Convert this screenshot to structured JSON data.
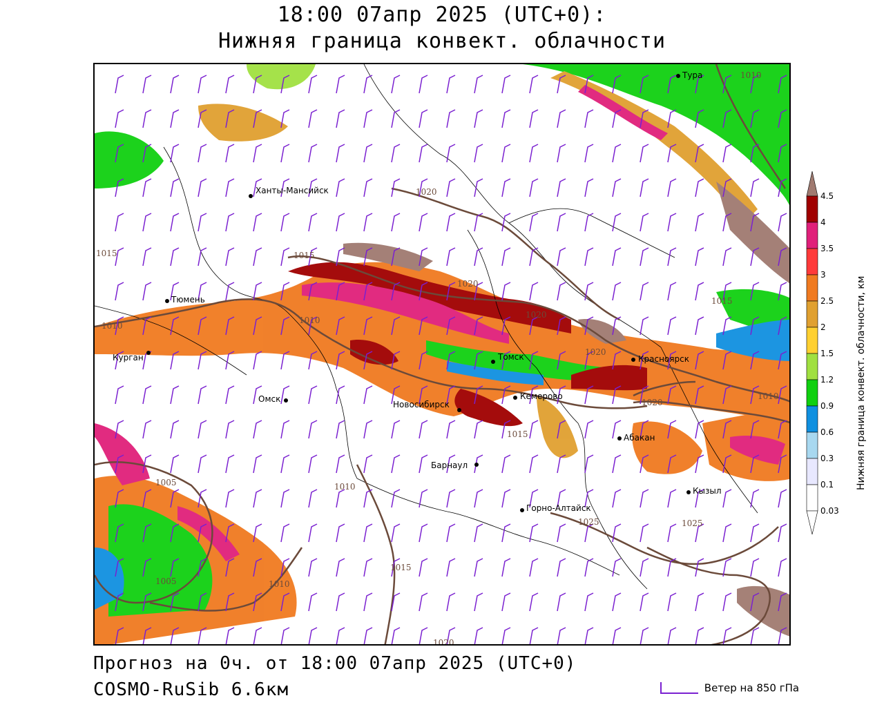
{
  "header": {
    "title_line1": "18:00 07апр 2025 (UTC+0):",
    "title_line2": "Нижняя граница конвект. облачности"
  },
  "footer": {
    "forecast": "Прогноз на 0ч. от 18:00 07апр 2025 (UTC+0)",
    "model": "COSMO-RuSib 6.6км",
    "wind_legend": "Ветер на 850 гПа"
  },
  "colorbar": {
    "title": "Нижняя граница конвект. облачности, км",
    "levels": [
      "4.5",
      "4",
      "3.5",
      "3",
      "2.5",
      "2",
      "1.5",
      "1.2",
      "0.9",
      "0.6",
      "0.3",
      "0.1",
      "0.03"
    ],
    "colors": [
      "#a07a70",
      "#a00000",
      "#e0207a",
      "#ff3a3a",
      "#f07a20",
      "#e0a030",
      "#ffd030",
      "#a0e040",
      "#10d010",
      "#1090e0",
      "#a8d8f0",
      "#e8e8ff",
      "#ffffff"
    ]
  },
  "cities": [
    {
      "name": "Тура"
    },
    {
      "name": "Ханты-Мансийск"
    },
    {
      "name": "Тюмень"
    },
    {
      "name": "Курган"
    },
    {
      "name": "Омск"
    },
    {
      "name": "Новосибирск"
    },
    {
      "name": "Томск"
    },
    {
      "name": "Кемерово"
    },
    {
      "name": "Красноярск"
    },
    {
      "name": "Абакан"
    },
    {
      "name": "Барнаул"
    },
    {
      "name": "Горно-Алтайск"
    },
    {
      "name": "Кызыл"
    }
  ],
  "isobar_labels": [
    "1010",
    "1020",
    "1015",
    "1015",
    "1020",
    "1010",
    "1020",
    "1010",
    "1015",
    "1020",
    "1020",
    "1015",
    "1005",
    "1010",
    "1025",
    "1025",
    "1015",
    "1005",
    "1010",
    "1020",
    "1010"
  ]
}
